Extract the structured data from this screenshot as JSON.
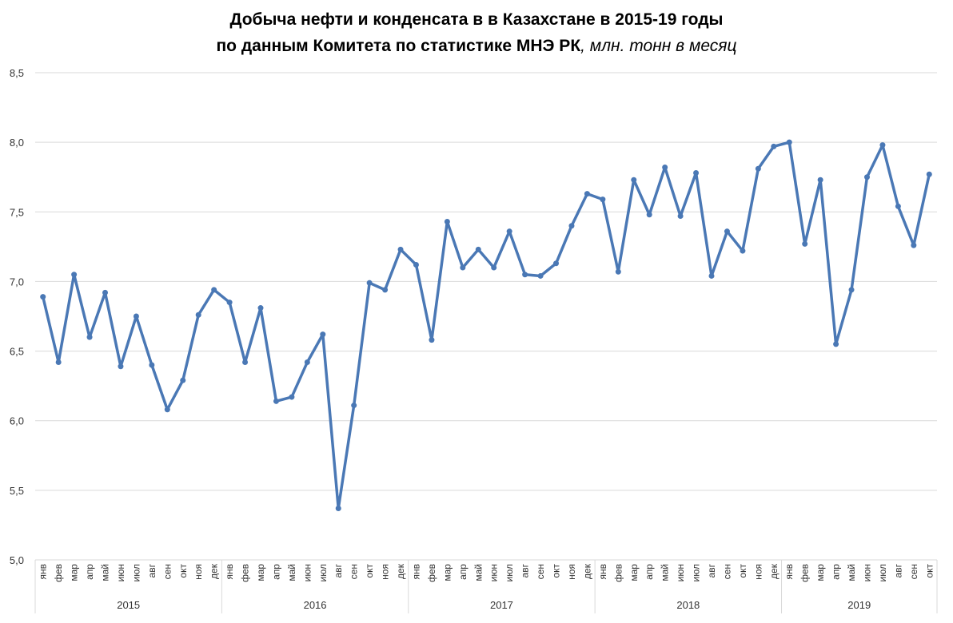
{
  "chart_data": {
    "type": "line",
    "title": "Добыча нефти и конденсата в в Казахстане в 2015-19 годы",
    "title_line2": "по данным Комитета по статистике МНЭ РК",
    "units": ", млн. тонн в месяц",
    "categories": [
      "янв",
      "фев",
      "мар",
      "апр",
      "май",
      "июн",
      "июл",
      "авг",
      "сен",
      "окт",
      "ноя",
      "дек",
      "янв",
      "фев",
      "мар",
      "апр",
      "май",
      "июн",
      "июл",
      "авг",
      "сен",
      "окт",
      "ноя",
      "дек",
      "янв",
      "фев",
      "мар",
      "апр",
      "май",
      "июн",
      "июл",
      "авг",
      "сен",
      "окт",
      "ноя",
      "дек",
      "янв",
      "фев",
      "мар",
      "апр",
      "май",
      "июн",
      "июл",
      "авг",
      "сен",
      "окт",
      "ноя",
      "дек",
      "янв",
      "фев",
      "мар",
      "апр",
      "май",
      "июн",
      "июл",
      "авг",
      "сен",
      "окт"
    ],
    "years": [
      "2015",
      "2016",
      "2017",
      "2018",
      "2019"
    ],
    "series": [
      {
        "color": "#4a78b5",
        "values": [
          6.89,
          6.42,
          7.05,
          6.6,
          6.92,
          6.39,
          6.75,
          6.4,
          6.08,
          6.29,
          6.76,
          6.94,
          6.85,
          6.42,
          6.81,
          6.14,
          6.17,
          6.42,
          6.62,
          5.37,
          6.11,
          6.99,
          6.94,
          7.23,
          7.12,
          6.58,
          7.43,
          7.1,
          7.23,
          7.1,
          7.36,
          7.05,
          7.04,
          7.13,
          7.4,
          7.63,
          7.59,
          7.07,
          7.73,
          7.48,
          7.82,
          7.47,
          7.78,
          7.04,
          7.36,
          7.22,
          7.81,
          7.97,
          8.0,
          7.27,
          7.73,
          6.55,
          6.94,
          7.75,
          7.98,
          7.54,
          7.26,
          7.77
        ]
      }
    ],
    "ylim": [
      5.0,
      8.5
    ],
    "yticks": [
      {
        "value": 5.0,
        "label": "5,0"
      },
      {
        "value": 5.5,
        "label": "5,5"
      },
      {
        "value": 6.0,
        "label": "6,0"
      },
      {
        "value": 6.5,
        "label": "6,5"
      },
      {
        "value": 7.0,
        "label": "7,0"
      },
      {
        "value": 7.5,
        "label": "7,5"
      },
      {
        "value": 8.0,
        "label": "8,0"
      },
      {
        "value": 8.5,
        "label": "8,5"
      }
    ],
    "grid": true
  }
}
